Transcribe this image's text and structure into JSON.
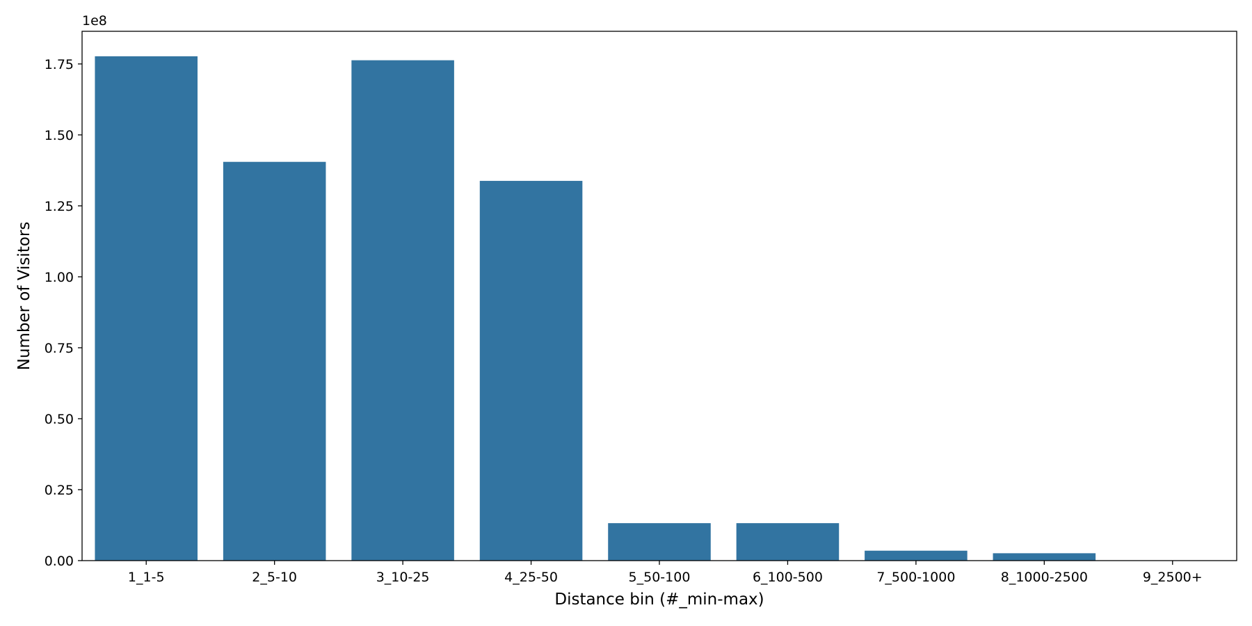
{
  "chart_data": {
    "type": "bar",
    "title": "",
    "xlabel": "Distance bin (#_min-max)",
    "ylabel": "Number of Visitors",
    "y_offset_label": "1e8",
    "categories": [
      "1_1-5",
      "2_5-10",
      "3_10-25",
      "4_25-50",
      "5_50-100",
      "6_100-500",
      "7_500-1000",
      "8_1000-2500",
      "9_2500+"
    ],
    "values": [
      177700000,
      140500000,
      176300000,
      133800000,
      13200000,
      13200000,
      3500000,
      2600000,
      100000
    ],
    "y_ticks": [
      0,
      25000000,
      50000000,
      75000000,
      100000000,
      125000000,
      150000000,
      175000000
    ],
    "y_tick_labels": [
      "0.00",
      "0.25",
      "0.50",
      "0.75",
      "1.00",
      "1.25",
      "1.50",
      "1.75"
    ],
    "ylim": [
      0,
      186500000
    ],
    "grid": false,
    "bar_color": "#3274a1",
    "legend": "none"
  }
}
